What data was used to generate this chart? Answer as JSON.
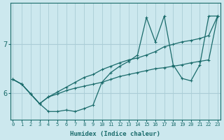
{
  "xlabel": "Humidex (Indice chaleur)",
  "bg_color": "#cce8ee",
  "line_color": "#1a6b6b",
  "grid_color": "#aacdd6",
  "x_ticks": [
    0,
    1,
    2,
    3,
    4,
    5,
    6,
    7,
    8,
    9,
    10,
    11,
    12,
    13,
    14,
    15,
    16,
    17,
    18,
    19,
    20,
    21,
    22,
    23
  ],
  "y_ticks": [
    6,
    7
  ],
  "xlim": [
    -0.3,
    23.3
  ],
  "ylim": [
    5.45,
    7.85
  ],
  "line_spiky_x": [
    0,
    1,
    2,
    3,
    4,
    5,
    6,
    7,
    8,
    9,
    10,
    11,
    12,
    13,
    14,
    15,
    16,
    17,
    18,
    19,
    20,
    21,
    22,
    23
  ],
  "line_spiky_y": [
    6.28,
    6.18,
    5.98,
    5.78,
    5.62,
    5.62,
    5.65,
    5.62,
    5.68,
    5.75,
    6.22,
    6.42,
    6.55,
    6.65,
    6.78,
    7.55,
    7.05,
    7.58,
    6.58,
    6.3,
    6.25,
    6.58,
    7.58,
    7.58
  ],
  "line_diagonal_x": [
    0,
    1,
    2,
    3,
    4,
    5,
    6,
    7,
    8,
    9,
    10,
    11,
    12,
    13,
    14,
    15,
    16,
    17,
    18,
    19,
    20,
    21,
    22,
    23
  ],
  "line_diagonal_y": [
    6.28,
    6.18,
    5.98,
    5.78,
    5.92,
    6.02,
    6.12,
    6.22,
    6.32,
    6.38,
    6.48,
    6.55,
    6.62,
    6.68,
    6.72,
    6.78,
    6.85,
    6.95,
    7.0,
    7.05,
    7.08,
    7.12,
    7.18,
    7.58
  ],
  "line_flat_x": [
    0,
    1,
    2,
    3,
    4,
    5,
    6,
    7,
    8,
    9,
    10,
    11,
    12,
    13,
    14,
    15,
    16,
    17,
    18,
    19,
    20,
    21,
    22,
    23
  ],
  "line_flat_y": [
    6.28,
    6.18,
    5.98,
    5.78,
    5.92,
    5.98,
    6.05,
    6.1,
    6.14,
    6.18,
    6.22,
    6.28,
    6.34,
    6.38,
    6.42,
    6.46,
    6.5,
    6.52,
    6.55,
    6.58,
    6.62,
    6.65,
    6.68,
    7.58
  ],
  "marker_size": 3.5
}
